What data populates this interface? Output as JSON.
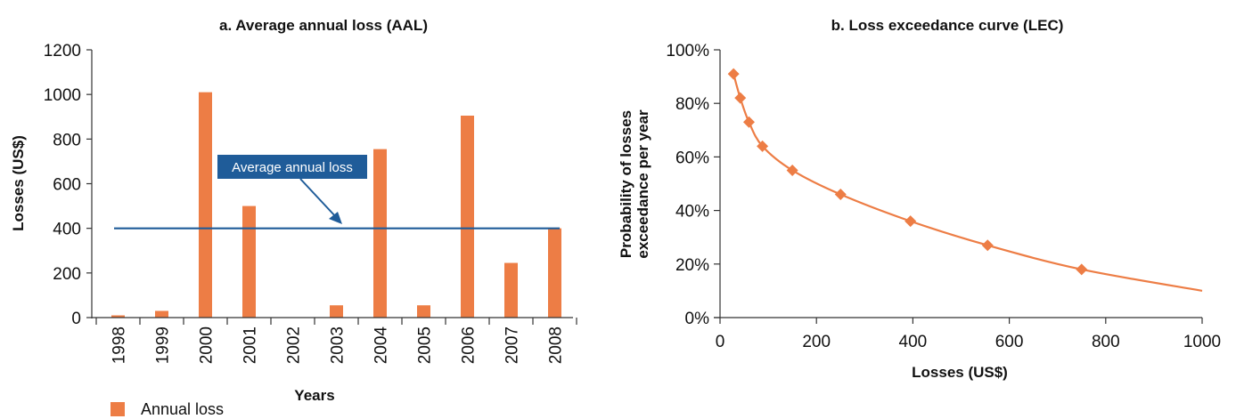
{
  "chart_data": [
    {
      "type": "bar",
      "title": "a. Average annual loss (AAL)",
      "xlabel": "Years",
      "ylabel": "Losses (US$)",
      "ylim": [
        0,
        1200
      ],
      "yticks": [
        "0",
        "200",
        "400",
        "600",
        "800",
        "1000",
        "1200"
      ],
      "categories": [
        "1998",
        "1999",
        "2000",
        "2001",
        "2002",
        "2003",
        "2004",
        "2005",
        "2006",
        "2007",
        "2008"
      ],
      "series": [
        {
          "name": "Annual loss",
          "color": "#ED7D45",
          "values": [
            10,
            30,
            1010,
            500,
            0,
            55,
            755,
            55,
            905,
            245,
            400
          ]
        }
      ],
      "reference_line": {
        "value": 400,
        "color": "#1F5C99"
      },
      "annotation": "Average annual loss",
      "legend": {
        "position": "bottom-left",
        "items": [
          "Annual loss"
        ]
      },
      "grid": false
    },
    {
      "type": "line",
      "title": "b. Loss exceedance curve (LEC)",
      "xlabel": "Losses (US$)",
      "ylabel_lines": [
        "Probability of losses",
        "exceedance per year"
      ],
      "xlim": [
        0,
        1000
      ],
      "ylim": [
        0,
        100
      ],
      "xticks": [
        "0",
        "200",
        "400",
        "600",
        "800",
        "1000"
      ],
      "yticks": [
        "0%",
        "20%",
        "40%",
        "60%",
        "80%",
        "100%"
      ],
      "color": "#ED7D45",
      "markers": [
        {
          "x": 28,
          "y": 91
        },
        {
          "x": 42,
          "y": 82
        },
        {
          "x": 60,
          "y": 73
        },
        {
          "x": 88,
          "y": 64
        },
        {
          "x": 150,
          "y": 55
        },
        {
          "x": 250,
          "y": 46
        },
        {
          "x": 395,
          "y": 36
        },
        {
          "x": 555,
          "y": 27
        },
        {
          "x": 750,
          "y": 18
        }
      ],
      "curve_end": {
        "x": 1000,
        "y": 10
      },
      "grid": false
    }
  ]
}
